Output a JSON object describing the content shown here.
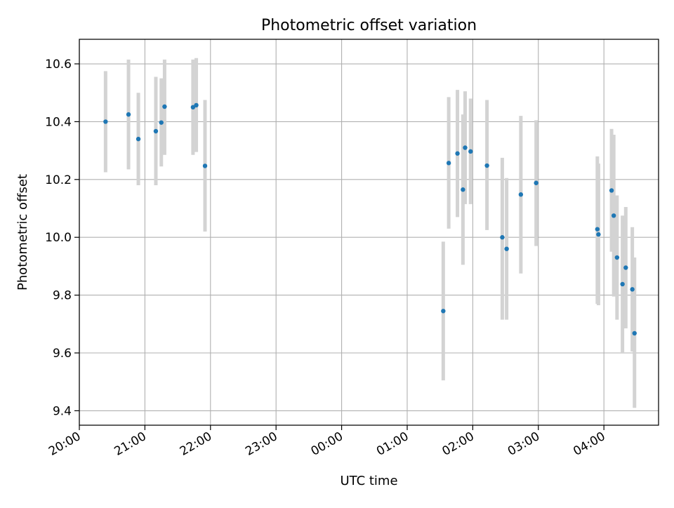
{
  "chart_data": {
    "type": "scatter",
    "title": "Photometric offset variation",
    "xlabel": "UTC time",
    "ylabel": "Photometric offset",
    "xlim": [
      "20:00",
      "04:50"
    ],
    "ylim": [
      9.35,
      10.685
    ],
    "grid": true,
    "x_ticks": [
      "20:00",
      "21:00",
      "22:00",
      "23:00",
      "00:00",
      "01:00",
      "02:00",
      "03:00",
      "04:00"
    ],
    "y_ticks": [
      "9.4",
      "9.6",
      "9.8",
      "10.0",
      "10.2",
      "10.4",
      "10.6"
    ],
    "colors": {
      "marker": "#1f77b4",
      "errorbar": "#d3d3d3",
      "grid": "#b0b0b0"
    },
    "series": [
      {
        "points": [
          {
            "x": "20:24",
            "y": 10.4,
            "yerr_low": 10.225,
            "yerr_high": 10.575
          },
          {
            "x": "20:45",
            "y": 10.425,
            "yerr_low": 10.235,
            "yerr_high": 10.615
          },
          {
            "x": "20:54",
            "y": 10.34,
            "yerr_low": 10.18,
            "yerr_high": 10.5
          },
          {
            "x": "21:10",
            "y": 10.367,
            "yerr_low": 10.18,
            "yerr_high": 10.555
          },
          {
            "x": "21:15",
            "y": 10.397,
            "yerr_low": 10.245,
            "yerr_high": 10.55
          },
          {
            "x": "21:18",
            "y": 10.452,
            "yerr_low": 10.285,
            "yerr_high": 10.615
          },
          {
            "x": "21:44",
            "y": 10.45,
            "yerr_low": 10.285,
            "yerr_high": 10.615
          },
          {
            "x": "21:47",
            "y": 10.457,
            "yerr_low": 10.295,
            "yerr_high": 10.62
          },
          {
            "x": "21:55",
            "y": 10.247,
            "yerr_low": 10.02,
            "yerr_high": 10.475
          },
          {
            "x": "01:33",
            "y": 9.745,
            "yerr_low": 9.505,
            "yerr_high": 9.985
          },
          {
            "x": "01:38",
            "y": 10.257,
            "yerr_low": 10.03,
            "yerr_high": 10.485
          },
          {
            "x": "01:46",
            "y": 10.29,
            "yerr_low": 10.07,
            "yerr_high": 10.51
          },
          {
            "x": "01:51",
            "y": 10.165,
            "yerr_low": 9.905,
            "yerr_high": 10.425
          },
          {
            "x": "01:53",
            "y": 10.31,
            "yerr_low": 10.115,
            "yerr_high": 10.505
          },
          {
            "x": "01:58",
            "y": 10.297,
            "yerr_low": 10.115,
            "yerr_high": 10.48
          },
          {
            "x": "02:13",
            "y": 10.248,
            "yerr_low": 10.025,
            "yerr_high": 10.475
          },
          {
            "x": "02:27",
            "y": 10.0,
            "yerr_low": 9.715,
            "yerr_high": 10.275
          },
          {
            "x": "02:31",
            "y": 9.96,
            "yerr_low": 9.715,
            "yerr_high": 10.205
          },
          {
            "x": "02:44",
            "y": 10.148,
            "yerr_low": 9.875,
            "yerr_high": 10.42
          },
          {
            "x": "02:58",
            "y": 10.188,
            "yerr_low": 9.97,
            "yerr_high": 10.405
          },
          {
            "x": "03:54",
            "y": 10.028,
            "yerr_low": 9.77,
            "yerr_high": 10.28
          },
          {
            "x": "03:55",
            "y": 10.01,
            "yerr_low": 9.765,
            "yerr_high": 10.255
          },
          {
            "x": "04:07",
            "y": 10.162,
            "yerr_low": 9.95,
            "yerr_high": 10.375
          },
          {
            "x": "04:09",
            "y": 10.075,
            "yerr_low": 9.795,
            "yerr_high": 10.355
          },
          {
            "x": "04:12",
            "y": 9.93,
            "yerr_low": 9.715,
            "yerr_high": 10.145
          },
          {
            "x": "04:17",
            "y": 9.838,
            "yerr_low": 9.6,
            "yerr_high": 10.075
          },
          {
            "x": "04:20",
            "y": 9.895,
            "yerr_low": 9.685,
            "yerr_high": 10.105
          },
          {
            "x": "04:26",
            "y": 9.82,
            "yerr_low": 9.605,
            "yerr_high": 10.035
          },
          {
            "x": "04:28",
            "y": 9.668,
            "yerr_low": 9.41,
            "yerr_high": 9.93
          }
        ]
      }
    ]
  }
}
